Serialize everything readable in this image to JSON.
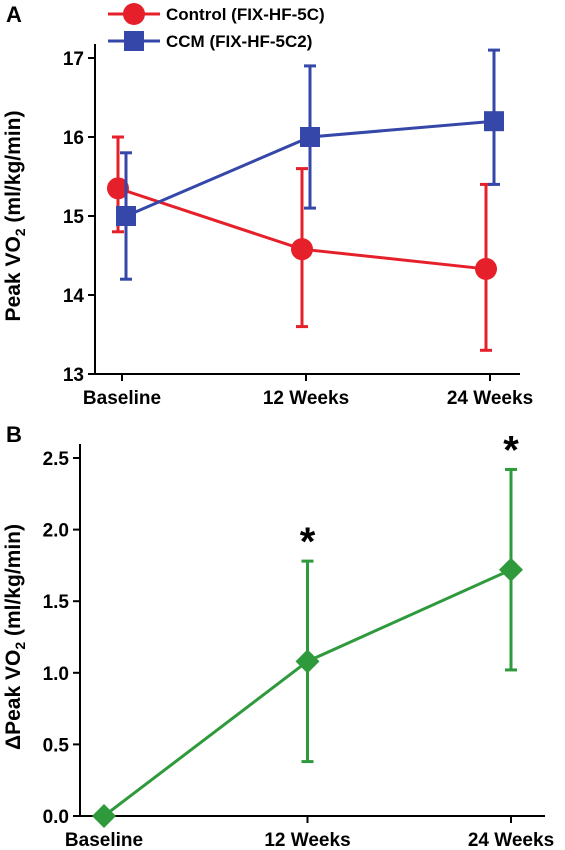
{
  "chart_data": [
    {
      "panel": "A",
      "type": "line",
      "ylabel": "Peak VO",
      "ylabel_sub": "2",
      "ylabel_unit": " (ml/kg/min)",
      "categories": [
        "Baseline",
        "12 Weeks",
        "24 Weeks"
      ],
      "ylim": [
        13,
        17
      ],
      "yticks": [
        "13",
        "14",
        "15",
        "16",
        "17"
      ],
      "legend_position": "top-left",
      "series": [
        {
          "name": "Control (FIX-HF-5C)",
          "color": "#e5202a",
          "marker": "circle",
          "values": [
            15.35,
            14.58,
            14.33
          ],
          "err_low": [
            14.8,
            13.6,
            13.3
          ],
          "err_high": [
            16.0,
            15.6,
            15.4
          ]
        },
        {
          "name": "CCM (FIX-HF-5C2)",
          "color": "#3547a8",
          "marker": "square",
          "values": [
            15.0,
            16.0,
            16.2
          ],
          "err_low": [
            14.2,
            15.1,
            15.4
          ],
          "err_high": [
            15.8,
            16.9,
            17.1
          ]
        }
      ]
    },
    {
      "panel": "B",
      "type": "line",
      "ylabel": "ΔPeak VO",
      "ylabel_sub": "2",
      "ylabel_unit": " (ml/kg/min)",
      "categories": [
        "Baseline",
        "12 Weeks",
        "24 Weeks"
      ],
      "ylim": [
        0,
        2.5
      ],
      "yticks": [
        "0.0",
        "0.5",
        "1.0",
        "1.5",
        "2.0",
        "2.5"
      ],
      "series": [
        {
          "color": "#2e9a3c",
          "marker": "diamond",
          "values": [
            0.0,
            1.08,
            1.72
          ],
          "err_low": [
            null,
            0.38,
            1.02
          ],
          "err_high": [
            null,
            1.78,
            2.42
          ],
          "significance": [
            "",
            "*",
            "*"
          ]
        }
      ]
    }
  ]
}
